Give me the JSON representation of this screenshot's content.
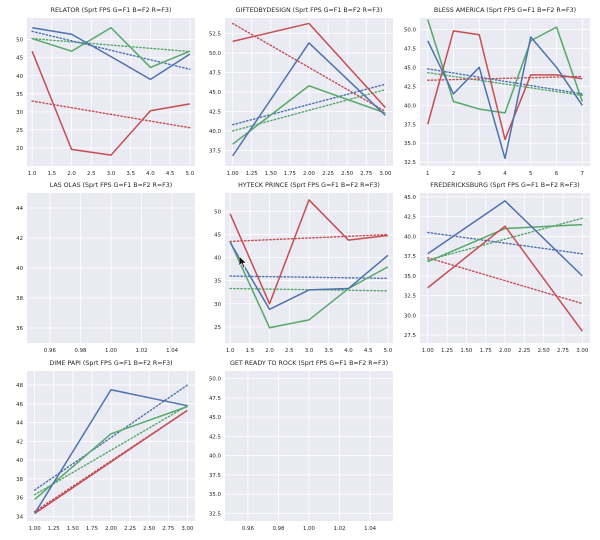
{
  "colors": {
    "background": "#ffffff",
    "plot_bg": "#eaeaf2",
    "grid": "#ffffff",
    "text": "#262626",
    "green": "#55a868",
    "red": "#c44e52",
    "blue": "#4c72b0"
  },
  "chart_data": [
    {
      "type": "line",
      "title": "RELATOR (Sprt FPS G=F1 B=F2 R=F3)",
      "xlim": [
        0.87,
        5.13
      ],
      "ylim": [
        15,
        56
      ],
      "xticks": [
        1.0,
        1.5,
        2.0,
        2.5,
        3.0,
        3.5,
        4.0,
        4.5,
        5.0
      ],
      "xtick_labels": [
        "1.0",
        "1.5",
        "2.0",
        "2.5",
        "3.0",
        "3.5",
        "4.0",
        "4.5",
        "5.0"
      ],
      "yticks": [
        20,
        25,
        30,
        35,
        40,
        45,
        50
      ],
      "ytick_labels": [
        "20",
        "25",
        "30",
        "35",
        "40",
        "45",
        "50"
      ],
      "grid": true,
      "x": [
        1,
        2,
        3,
        4,
        5
      ],
      "series": [
        {
          "color": "green",
          "values": [
            50.3,
            46.8,
            53.3,
            42.3,
            46.8
          ]
        },
        {
          "color": "red",
          "values": [
            46.8,
            19.6,
            18.0,
            30.3,
            32.2
          ]
        },
        {
          "color": "blue",
          "values": [
            53.3,
            51.5,
            45.3,
            39.0,
            46.0
          ]
        }
      ],
      "trends": [
        {
          "color": "green",
          "values": [
            50.3,
            46.7
          ]
        },
        {
          "color": "red",
          "values": [
            33.0,
            25.6
          ]
        },
        {
          "color": "blue",
          "values": [
            52.3,
            41.8
          ]
        }
      ]
    },
    {
      "type": "line",
      "title": "GIFTEDBYDESIGN (Sprt FPS G=F1 B=F2 R=F3)",
      "xlim": [
        0.9,
        3.1
      ],
      "ylim": [
        35.5,
        54.5
      ],
      "xticks": [
        1.0,
        1.25,
        1.5,
        1.75,
        2.0,
        2.25,
        2.5,
        2.75,
        3.0
      ],
      "xtick_labels": [
        "1.00",
        "1.25",
        "1.50",
        "1.75",
        "2.00",
        "2.25",
        "2.50",
        "2.75",
        "3.00"
      ],
      "yticks": [
        37.5,
        40.0,
        42.5,
        45.0,
        47.5,
        50.0,
        52.5
      ],
      "ytick_labels": [
        "37.5",
        "40.0",
        "42.5",
        "45.0",
        "47.5",
        "50.0",
        "52.5"
      ],
      "grid": true,
      "x": [
        1,
        2,
        3
      ],
      "series": [
        {
          "color": "green",
          "values": [
            38.3,
            45.8,
            42.3
          ]
        },
        {
          "color": "red",
          "values": [
            51.5,
            53.8,
            43.0
          ]
        },
        {
          "color": "blue",
          "values": [
            36.8,
            51.3,
            42.0
          ]
        }
      ],
      "trends": [
        {
          "color": "green",
          "values": [
            40.0,
            45.3
          ]
        },
        {
          "color": "red",
          "values": [
            53.8,
            42.5
          ]
        },
        {
          "color": "blue",
          "values": [
            40.8,
            46.0
          ]
        }
      ]
    },
    {
      "type": "line",
      "title": "BLESS AMERICA (Sprt FPS G=F1 B=F2 R=F3)",
      "xlim": [
        0.7,
        7.3
      ],
      "ylim": [
        32.0,
        51.5
      ],
      "xticks": [
        1,
        2,
        3,
        4,
        5,
        6,
        7
      ],
      "xtick_labels": [
        "1",
        "2",
        "3",
        "4",
        "5",
        "6",
        "7"
      ],
      "yticks": [
        32.5,
        35.0,
        37.5,
        40.0,
        42.5,
        45.0,
        47.5,
        50.0
      ],
      "ytick_labels": [
        "32.5",
        "35.0",
        "37.5",
        "40.0",
        "42.5",
        "45.0",
        "47.5",
        "50.0"
      ],
      "grid": true,
      "x": [
        1,
        2,
        3,
        4,
        5,
        6,
        7
      ],
      "series": [
        {
          "color": "green",
          "values": [
            51.3,
            40.5,
            39.5,
            39.0,
            48.5,
            50.3,
            40.5
          ]
        },
        {
          "color": "red",
          "values": [
            37.5,
            49.8,
            49.3,
            35.5,
            44.0,
            44.0,
            43.5
          ]
        },
        {
          "color": "blue",
          "values": [
            48.5,
            41.5,
            45.0,
            33.0,
            49.0,
            45.0,
            40.0
          ]
        }
      ],
      "trends": [
        {
          "color": "green",
          "values": [
            44.3,
            41.3
          ]
        },
        {
          "color": "red",
          "values": [
            43.3,
            43.8
          ]
        },
        {
          "color": "blue",
          "values": [
            44.8,
            41.5
          ]
        }
      ]
    },
    {
      "type": "line",
      "title": "LAS OLAS (Sprt FPS G=F1 B=F2 R=F3)",
      "xlim": [
        0.945,
        1.055
      ],
      "ylim": [
        35.0,
        45.0
      ],
      "xticks": [
        0.96,
        0.98,
        1.0,
        1.02,
        1.04
      ],
      "xtick_labels": [
        "0.96",
        "0.98",
        "1.00",
        "1.02",
        "1.04"
      ],
      "yticks": [
        36,
        38,
        40,
        42,
        44
      ],
      "ytick_labels": [
        "36",
        "38",
        "40",
        "42",
        "44"
      ],
      "grid": true,
      "x": [],
      "series": [],
      "trends": []
    },
    {
      "type": "line",
      "title": "HYTECK PRINCE (Sprt FPS G=F1 B=F2 R=F3)",
      "xlim": [
        0.87,
        5.13
      ],
      "ylim": [
        21.5,
        54.0
      ],
      "xticks": [
        1.0,
        1.5,
        2.0,
        2.5,
        3.0,
        3.5,
        4.0,
        4.5,
        5.0
      ],
      "xtick_labels": [
        "1.0",
        "1.5",
        "2.0",
        "2.5",
        "3.0",
        "3.5",
        "4.0",
        "4.5",
        "5.0"
      ],
      "yticks": [
        25,
        30,
        35,
        40,
        45,
        50
      ],
      "ytick_labels": [
        "25",
        "30",
        "35",
        "40",
        "45",
        "50"
      ],
      "grid": true,
      "x": [
        1,
        2,
        3,
        4,
        5
      ],
      "series": [
        {
          "color": "green",
          "values": [
            43.5,
            24.8,
            26.5,
            33.3,
            38.0
          ]
        },
        {
          "color": "red",
          "values": [
            49.5,
            30.0,
            52.5,
            43.8,
            44.8
          ]
        },
        {
          "color": "blue",
          "values": [
            43.3,
            28.8,
            33.0,
            33.3,
            40.5
          ]
        }
      ],
      "trends": [
        {
          "color": "green",
          "values": [
            33.3,
            32.8
          ]
        },
        {
          "color": "red",
          "values": [
            43.5,
            45.0
          ]
        },
        {
          "color": "blue",
          "values": [
            36.0,
            35.5
          ]
        }
      ]
    },
    {
      "type": "line",
      "title": "FREDERICKSBURG (Sprt FPS G=F1 B=F2 R=F3)",
      "xlim": [
        0.9,
        3.1
      ],
      "ylim": [
        26.5,
        45.5
      ],
      "xticks": [
        1.0,
        1.25,
        1.5,
        1.75,
        2.0,
        2.25,
        2.5,
        2.75,
        3.0
      ],
      "xtick_labels": [
        "1.00",
        "1.25",
        "1.50",
        "1.75",
        "2.00",
        "2.25",
        "2.50",
        "2.75",
        "3.00"
      ],
      "yticks": [
        27.5,
        30.0,
        32.5,
        35.0,
        37.5,
        40.0,
        42.5,
        45.0
      ],
      "ytick_labels": [
        "27.5",
        "30.0",
        "32.5",
        "35.0",
        "37.5",
        "40.0",
        "42.5",
        "45.0"
      ],
      "grid": true,
      "x": [
        1,
        2,
        3
      ],
      "series": [
        {
          "color": "green",
          "values": [
            36.8,
            41.0,
            41.5
          ]
        },
        {
          "color": "red",
          "values": [
            33.5,
            41.3,
            28.0
          ]
        },
        {
          "color": "blue",
          "values": [
            37.8,
            44.5,
            35.0
          ]
        }
      ],
      "trends": [
        {
          "color": "green",
          "values": [
            37.0,
            42.3
          ]
        },
        {
          "color": "red",
          "values": [
            37.3,
            31.5
          ]
        },
        {
          "color": "blue",
          "values": [
            40.5,
            37.8
          ]
        }
      ]
    },
    {
      "type": "line",
      "title": "DIME PAPI (Sprt FPS G=F1 B=F2 R=F3)",
      "xlim": [
        0.9,
        3.1
      ],
      "ylim": [
        33.5,
        49.5
      ],
      "xticks": [
        1.0,
        1.25,
        1.5,
        1.75,
        2.0,
        2.25,
        2.5,
        2.75,
        3.0
      ],
      "xtick_labels": [
        "1.00",
        "1.25",
        "1.50",
        "1.75",
        "2.00",
        "2.25",
        "2.50",
        "2.75",
        "3.00"
      ],
      "yticks": [
        34,
        36,
        38,
        40,
        42,
        44,
        46,
        48
      ],
      "ytick_labels": [
        "34",
        "36",
        "38",
        "40",
        "42",
        "44",
        "46",
        "48"
      ],
      "grid": true,
      "x": [
        1,
        2,
        3
      ],
      "series": [
        {
          "color": "green",
          "values": [
            35.8,
            42.8,
            45.7
          ]
        },
        {
          "color": "red",
          "values": [
            34.3,
            39.8,
            45.3
          ]
        },
        {
          "color": "blue",
          "values": [
            34.3,
            47.5,
            45.8
          ]
        }
      ],
      "trends": [
        {
          "color": "green",
          "values": [
            36.3,
            45.8
          ]
        },
        {
          "color": "red",
          "values": [
            34.5,
            45.3
          ]
        },
        {
          "color": "blue",
          "values": [
            36.8,
            48.0
          ]
        }
      ]
    },
    {
      "type": "line",
      "title": "GET READY TO ROCK (Sprt FPS G=F1 B=F2 R=F3)",
      "xlim": [
        0.945,
        1.055
      ],
      "ylim": [
        31.5,
        51.0
      ],
      "xticks": [
        0.96,
        0.98,
        1.0,
        1.02,
        1.04
      ],
      "xtick_labels": [
        "0.96",
        "0.98",
        "1.00",
        "1.02",
        "1.04"
      ],
      "yticks": [
        32.5,
        35.0,
        37.5,
        40.0,
        42.5,
        45.0,
        47.5,
        50.0
      ],
      "ytick_labels": [
        "32.5",
        "35.0",
        "37.5",
        "40.0",
        "42.5",
        "45.0",
        "47.5",
        "50.0"
      ],
      "grid": true,
      "x": [],
      "series": [],
      "trends": []
    }
  ]
}
